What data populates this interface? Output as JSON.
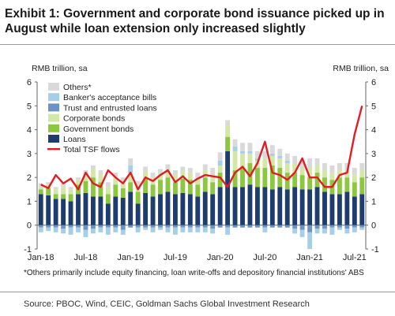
{
  "title": "Exhibit 1: Government and corporate bond issuance picked up in August while loan extension only increased slightly",
  "footnote": "*Others primarily include equity financing, loan write-offs and depository financial institutions' ABS",
  "source": "Source: PBOC, Wind, CEIC, Goldman Sachs Global Investment Research",
  "chart_data": {
    "type": "bar",
    "stacked": true,
    "left_axis_label": "RMB trillion, sa",
    "right_axis_label": "RMB trillion, sa",
    "ylim": [
      -1,
      6
    ],
    "yticks": [
      -1,
      0,
      1,
      2,
      3,
      4,
      5,
      6
    ],
    "grid": false,
    "legend_position": "top-left",
    "x": [
      "2018-01",
      "2018-02",
      "2018-03",
      "2018-04",
      "2018-05",
      "2018-06",
      "2018-07",
      "2018-08",
      "2018-09",
      "2018-10",
      "2018-11",
      "2018-12",
      "2019-01",
      "2019-02",
      "2019-03",
      "2019-04",
      "2019-05",
      "2019-06",
      "2019-07",
      "2019-08",
      "2019-09",
      "2019-10",
      "2019-11",
      "2019-12",
      "2020-01",
      "2020-02",
      "2020-03",
      "2020-04",
      "2020-05",
      "2020-06",
      "2020-07",
      "2020-08",
      "2020-09",
      "2020-10",
      "2020-11",
      "2020-12",
      "2021-01",
      "2021-02",
      "2021-03",
      "2021-04",
      "2021-05",
      "2021-06",
      "2021-07",
      "2021-08"
    ],
    "x_tick_labels": [
      {
        "label": "Jan-18",
        "index": 0
      },
      {
        "label": "Jul-18",
        "index": 6
      },
      {
        "label": "Jan-19",
        "index": 12
      },
      {
        "label": "Jul-19",
        "index": 18
      },
      {
        "label": "Jan-20",
        "index": 24
      },
      {
        "label": "Jul-20",
        "index": 30
      },
      {
        "label": "Jan-21",
        "index": 36
      },
      {
        "label": "Jul-21",
        "index": 42
      }
    ],
    "series": [
      {
        "name": "Others*",
        "kind": "bar",
        "color": "#d9d9d9",
        "values": [
          0.15,
          0.1,
          0.1,
          0.15,
          0.1,
          0.1,
          0.15,
          0.15,
          0.2,
          0.2,
          0.2,
          0.25,
          0.3,
          0.15,
          0.2,
          0.2,
          0.2,
          0.25,
          0.2,
          0.2,
          0.2,
          0.2,
          0.25,
          0.3,
          0.35,
          0.2,
          0.3,
          0.35,
          0.35,
          0.3,
          0.3,
          0.35,
          0.3,
          0.3,
          0.3,
          0.3,
          0.4,
          0.3,
          0.3,
          0.3,
          0.3,
          0.3,
          0.3,
          0.3
        ]
      },
      {
        "name": "Banker's acceptance bills",
        "kind": "bar",
        "color": "#a6cee8",
        "values": [
          -0.2,
          -0.15,
          -0.2,
          -0.2,
          -0.3,
          -0.2,
          -0.3,
          -0.2,
          -0.2,
          -0.3,
          -0.2,
          -0.2,
          0.3,
          -0.2,
          -0.1,
          -0.2,
          -0.1,
          -0.2,
          -0.3,
          -0.2,
          -0.2,
          -0.2,
          -0.2,
          -0.2,
          0.2,
          -0.3,
          0.2,
          0.1,
          0.1,
          0.1,
          -0.2,
          0.1,
          0.1,
          0.1,
          -0.2,
          -0.3,
          -0.7,
          -0.2,
          -0.2,
          -0.3,
          -0.1,
          -0.2,
          -0.2,
          -0.1
        ]
      },
      {
        "name": "Trust and entrusted loans",
        "kind": "bar",
        "color": "#6b93c4",
        "values": [
          -0.1,
          -0.1,
          -0.1,
          -0.15,
          -0.1,
          -0.1,
          -0.2,
          -0.15,
          -0.1,
          -0.1,
          -0.1,
          -0.2,
          -0.1,
          -0.1,
          -0.1,
          -0.1,
          -0.1,
          -0.1,
          -0.1,
          -0.1,
          -0.1,
          -0.1,
          -0.1,
          -0.15,
          -0.1,
          -0.1,
          -0.1,
          -0.1,
          -0.1,
          -0.1,
          -0.1,
          -0.1,
          -0.1,
          -0.1,
          -0.15,
          -0.2,
          -0.3,
          -0.15,
          -0.15,
          -0.1,
          -0.1,
          -0.15,
          -0.1,
          -0.1
        ]
      },
      {
        "name": "Corporate bonds",
        "kind": "bar",
        "color": "#d3e8a7",
        "values": [
          0.1,
          0.15,
          0.2,
          0.3,
          0.2,
          0.2,
          0.3,
          0.35,
          0.3,
          0.3,
          0.3,
          0.2,
          0.4,
          0.3,
          0.3,
          0.3,
          0.25,
          0.3,
          0.3,
          0.3,
          0.3,
          0.3,
          0.3,
          0.3,
          0.3,
          0.5,
          0.8,
          0.6,
          0.4,
          0.3,
          0.4,
          0.4,
          0.4,
          0.4,
          0.4,
          0.3,
          0.4,
          0.3,
          0.3,
          0.3,
          0.3,
          0.3,
          0.3,
          0.3
        ]
      },
      {
        "name": "Government bonds",
        "kind": "bar",
        "color": "#8dc63f",
        "values": [
          0.2,
          0.3,
          0.2,
          0.2,
          0.3,
          0.4,
          0.5,
          0.8,
          0.6,
          0.4,
          0.5,
          0.4,
          0.4,
          0.5,
          0.6,
          0.5,
          0.6,
          0.6,
          0.5,
          0.6,
          0.6,
          0.5,
          0.6,
          0.5,
          0.6,
          0.6,
          0.7,
          0.8,
          0.9,
          0.8,
          0.8,
          1.0,
          0.8,
          0.7,
          0.6,
          0.6,
          0.5,
          0.6,
          0.6,
          0.6,
          0.7,
          0.6,
          0.6,
          0.7
        ]
      },
      {
        "name": "Loans",
        "kind": "bar",
        "color": "#1f3c6e",
        "values": [
          1.3,
          1.25,
          1.1,
          1.1,
          1.0,
          1.3,
          1.35,
          1.2,
          1.2,
          0.9,
          1.2,
          1.15,
          1.4,
          0.9,
          1.35,
          1.2,
          1.3,
          1.4,
          1.3,
          1.35,
          1.3,
          1.2,
          1.4,
          1.3,
          1.6,
          3.1,
          1.6,
          1.6,
          1.7,
          1.6,
          1.6,
          1.5,
          1.6,
          1.5,
          1.6,
          1.5,
          1.5,
          1.6,
          1.4,
          1.3,
          1.3,
          1.4,
          1.2,
          1.3
        ]
      },
      {
        "name": "Total TSF flows",
        "kind": "line",
        "color": "#e31b23",
        "values": [
          1.7,
          1.55,
          2.1,
          1.75,
          1.95,
          1.5,
          2.2,
          1.75,
          1.6,
          2.3,
          2.0,
          1.75,
          2.2,
          1.5,
          2.0,
          1.85,
          2.1,
          2.3,
          1.8,
          2.05,
          1.75,
          1.95,
          2.1,
          2.05,
          2.0,
          1.6,
          2.2,
          2.45,
          2.05,
          2.6,
          3.5,
          2.2,
          2.1,
          1.9,
          2.2,
          2.8,
          2.0,
          2.0,
          1.6,
          1.6,
          2.1,
          2.2,
          3.8,
          5.0
        ]
      }
    ]
  }
}
